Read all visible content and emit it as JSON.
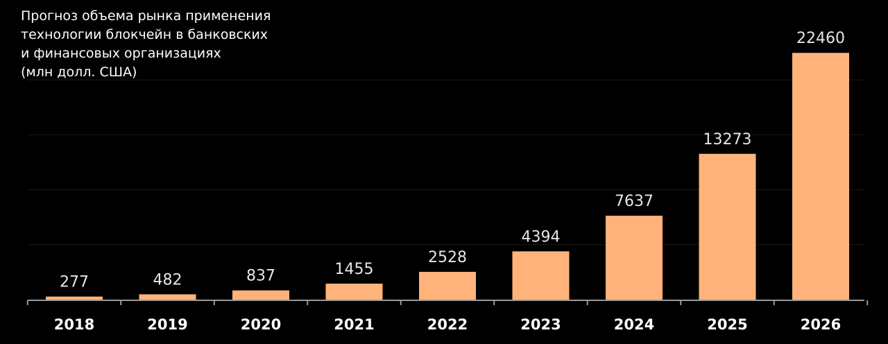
{
  "colors": {
    "background": "#000000",
    "bar": "#ffb37a",
    "text": "#ffffff",
    "value_text": "#e6e6e6",
    "axis": "#9a9a9a",
    "grid": "#1c1c1c"
  },
  "chart_data": {
    "type": "bar",
    "title_lines": [
      "Прогноз объема рынка применения",
      "технологии блокчейн в банковских",
      "и финансовых организациях",
      "(млн долл. США)"
    ],
    "categories": [
      "2018",
      "2019",
      "2020",
      "2021",
      "2022",
      "2023",
      "2024",
      "2025",
      "2026"
    ],
    "values": [
      277,
      482,
      837,
      1455,
      2528,
      4394,
      7637,
      13273,
      22460
    ],
    "value_labels": [
      "277",
      "482",
      "837",
      "1455",
      "2528",
      "4394",
      "7637",
      "13273",
      "22460"
    ],
    "ylim": [
      0,
      25000
    ],
    "grid": true,
    "legend": "none"
  }
}
